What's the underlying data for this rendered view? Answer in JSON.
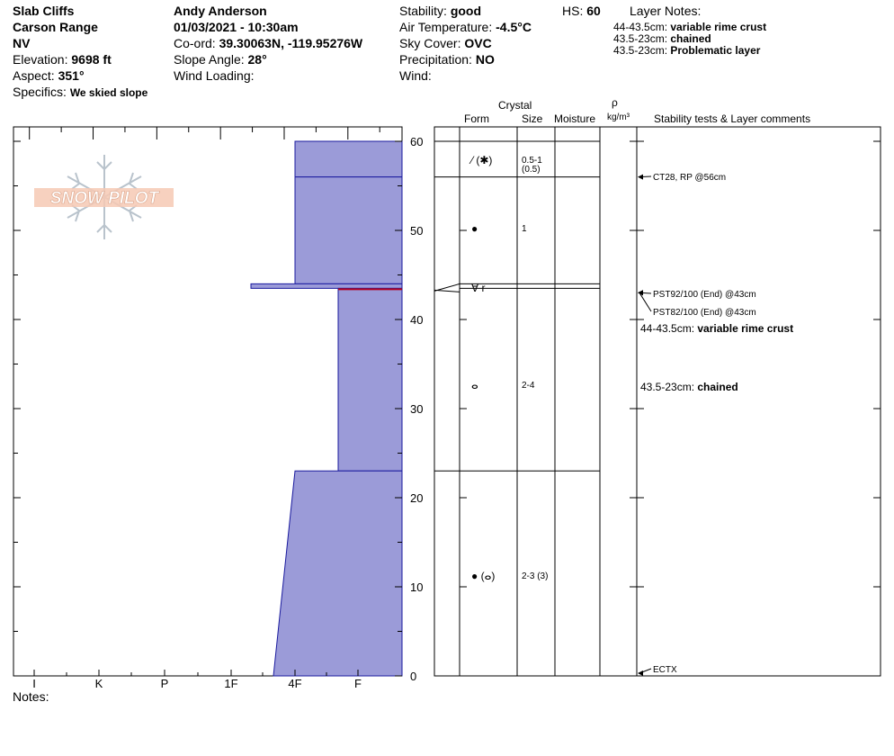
{
  "header": {
    "site_name": "Slab Cliffs",
    "range": "Carson Range",
    "state": "NV",
    "elevation_label": "Elevation:",
    "elevation": "9698 ft",
    "aspect_label": "Aspect:",
    "aspect": "351°",
    "specifics_label": "Specifics:",
    "specifics": "We skied slope",
    "observer": "Andy Anderson",
    "datetime": "01/03/2021 - 10:30am",
    "coord_label": "Co-ord:",
    "coord": "39.30063N, -119.95276W",
    "slope_label": "Slope Angle:",
    "slope": "28°",
    "wind_loading_label": "Wind Loading:",
    "wind_loading": "",
    "stability_label": "Stability:",
    "stability": "good",
    "air_temp_label": "Air Temperature:",
    "air_temp": "-4.5°C",
    "sky_label": "Sky Cover:",
    "sky": "OVC",
    "precip_label": "Precipitation:",
    "precip": "NO",
    "wind_label": "Wind:",
    "wind": "",
    "hs_label": "HS:",
    "hs": "60",
    "layer_notes_title": "Layer Notes:",
    "layer_notes": [
      {
        "range": "44-43.5cm:",
        "note": "variable rime crust"
      },
      {
        "range": "43.5-23cm:",
        "note": "chained"
      },
      {
        "range": "43.5-23cm:",
        "note": "Problematic layer"
      }
    ],
    "notes_label": "Notes:",
    "logo_text": "SNOW PILOT"
  },
  "columns": {
    "crystal": "Crystal",
    "form": "Form",
    "size": "Size",
    "moisture": "Moisture",
    "rho": "ρ",
    "density_unit": "kg/m³",
    "comments": "Stability tests & Layer comments"
  },
  "colors": {
    "hardness_fill": "#9b9bd8",
    "hardness_edge": "#1a1a9e",
    "problem_line": "#b00020"
  },
  "chart_data": {
    "type": "area",
    "ylim": [
      0,
      60
    ],
    "ytick_labels": [
      "0",
      "10",
      "20",
      "30",
      "40",
      "50",
      "60"
    ],
    "hardness_scale": [
      "I",
      "K",
      "P",
      "1F",
      "4F",
      "F"
    ],
    "hardness_profile": [
      {
        "bottom": 56,
        "top": 60,
        "hardness": "4F"
      },
      {
        "bottom": 44,
        "top": 56,
        "hardness": "4F"
      },
      {
        "bottom": 43.5,
        "top": 44,
        "hardness": "1F+"
      },
      {
        "bottom": 23,
        "top": 43.5,
        "hardness": "4F+"
      },
      {
        "bottom": 0,
        "top": 23,
        "hardness": "4F-",
        "top_hardness": "4F"
      }
    ],
    "layers": [
      {
        "bottom": 56,
        "top": 60,
        "form": "⁄ (✱)",
        "size": "0.5-1",
        "size_secondary": "(0.5)"
      },
      {
        "bottom": 44,
        "top": 56,
        "form": "●",
        "size": "1"
      },
      {
        "bottom": 43.5,
        "top": 44,
        "form": "∀ r",
        "size": ""
      },
      {
        "bottom": 23,
        "top": 43.5,
        "form": "ⴰ",
        "size": "2-4"
      },
      {
        "bottom": 0,
        "top": 23,
        "form": "● (ⴰ)",
        "size": "2-3 (3)"
      }
    ],
    "stability_tests": [
      {
        "label": "CT28, RP @56cm",
        "depth": 56
      },
      {
        "label": "PST92/100 (End) @43cm",
        "depth": 43
      },
      {
        "label": "PST82/100 (End) @43cm",
        "depth": 43
      },
      {
        "label": "ECTX",
        "depth": 0
      }
    ],
    "layer_comments": [
      {
        "range": "44-43.5cm:",
        "note": "variable rime crust"
      },
      {
        "range": "43.5-23cm:",
        "note": "chained"
      }
    ],
    "problematic_layer": {
      "bottom": 23,
      "top": 43.5
    }
  }
}
